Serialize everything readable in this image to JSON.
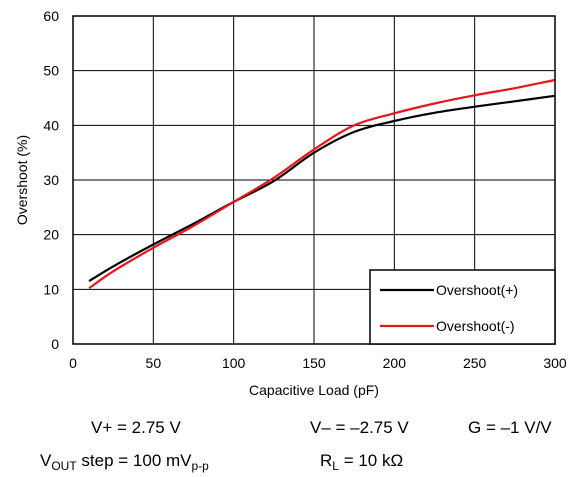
{
  "chart_data": {
    "type": "line",
    "xlabel": "Capacitive Load (pF)",
    "ylabel": "Overshoot (%)",
    "xlim": [
      0,
      300
    ],
    "ylim": [
      0,
      60
    ],
    "xticks": [
      0,
      50,
      100,
      150,
      200,
      250,
      300
    ],
    "yticks": [
      0,
      10,
      20,
      30,
      40,
      50,
      60
    ],
    "x_tick_labels": [
      "0",
      "50",
      "100",
      "150",
      "200",
      "250",
      "300"
    ],
    "y_tick_labels": [
      "0",
      "10",
      "20",
      "30",
      "40",
      "50",
      "60"
    ],
    "grid": true,
    "legend_position": "bottom-right",
    "series": [
      {
        "name": "Overshoot(+)",
        "color": "#000000",
        "x": [
          10,
          25,
          50,
          75,
          100,
          125,
          150,
          175,
          200,
          225,
          250,
          275,
          300
        ],
        "y": [
          11.5,
          14.2,
          18.2,
          22.0,
          26.0,
          29.8,
          35.0,
          38.8,
          40.8,
          42.3,
          43.4,
          44.4,
          45.4
        ]
      },
      {
        "name": "Overshoot(-)",
        "color": "#e8161b",
        "x": [
          10,
          25,
          50,
          75,
          100,
          125,
          150,
          175,
          200,
          225,
          250,
          275,
          300
        ],
        "y": [
          10.2,
          13.3,
          17.6,
          21.6,
          26.0,
          30.4,
          35.6,
          40.0,
          42.2,
          44.0,
          45.5,
          46.8,
          48.3
        ]
      }
    ]
  },
  "conditions": {
    "vplus": "V+ = 2.75 V",
    "vminus": "V– = –2.75 V",
    "gain": "G = –1 V/V",
    "vout_prefix": "V",
    "vout_sub": "OUT",
    "vout_mid": " step = 100 mV",
    "vout_sub2": "p-p",
    "rl_prefix": "R",
    "rl_sub": "L",
    "rl_value": " = 10 kΩ"
  }
}
